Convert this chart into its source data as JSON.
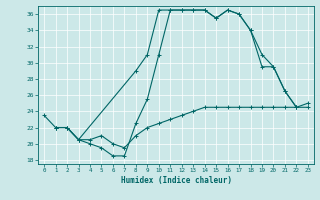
{
  "xlabel": "Humidex (Indice chaleur)",
  "bg_color": "#cce8e8",
  "line_color": "#006666",
  "grid_color": "#ffffff",
  "xlim": [
    -0.5,
    23.5
  ],
  "ylim": [
    17.5,
    37.0
  ],
  "yticks": [
    18,
    20,
    22,
    24,
    26,
    28,
    30,
    32,
    34,
    36
  ],
  "xticks": [
    0,
    1,
    2,
    3,
    4,
    5,
    6,
    7,
    8,
    9,
    10,
    11,
    12,
    13,
    14,
    15,
    16,
    17,
    18,
    19,
    20,
    21,
    22,
    23
  ],
  "c1x": [
    0,
    1,
    2,
    3,
    4,
    5,
    6,
    7,
    8,
    9,
    10,
    11,
    12,
    13,
    14,
    15,
    16,
    17,
    18,
    19,
    20,
    21,
    22
  ],
  "c1y": [
    23.5,
    22,
    22,
    20.5,
    20,
    19.5,
    18.5,
    18.5,
    22.5,
    25.5,
    31,
    36.5,
    36.5,
    36.5,
    36.5,
    35.5,
    36.5,
    36,
    34,
    29.5,
    29.5,
    26.5,
    24.5
  ],
  "c2x": [
    1,
    2,
    3,
    8,
    9,
    10,
    11,
    12,
    13,
    14,
    15,
    16,
    17,
    18,
    19,
    20,
    21,
    22,
    23
  ],
  "c2y": [
    22,
    22,
    20.5,
    29,
    31,
    36.5,
    36.5,
    36.5,
    36.5,
    36.5,
    35.5,
    36.5,
    36,
    34,
    31,
    29.5,
    26.5,
    24.5,
    24.5
  ],
  "c3x": [
    1,
    2,
    3,
    4,
    5,
    6,
    7,
    8,
    9,
    10,
    11,
    12,
    13,
    14,
    15,
    16,
    17,
    18,
    19,
    20,
    21,
    22,
    23
  ],
  "c3y": [
    22,
    22,
    20.5,
    20.5,
    21,
    20,
    19.5,
    21,
    22,
    22.5,
    23,
    23.5,
    24,
    24.5,
    24.5,
    24.5,
    24.5,
    24.5,
    24.5,
    24.5,
    24.5,
    24.5,
    25
  ]
}
